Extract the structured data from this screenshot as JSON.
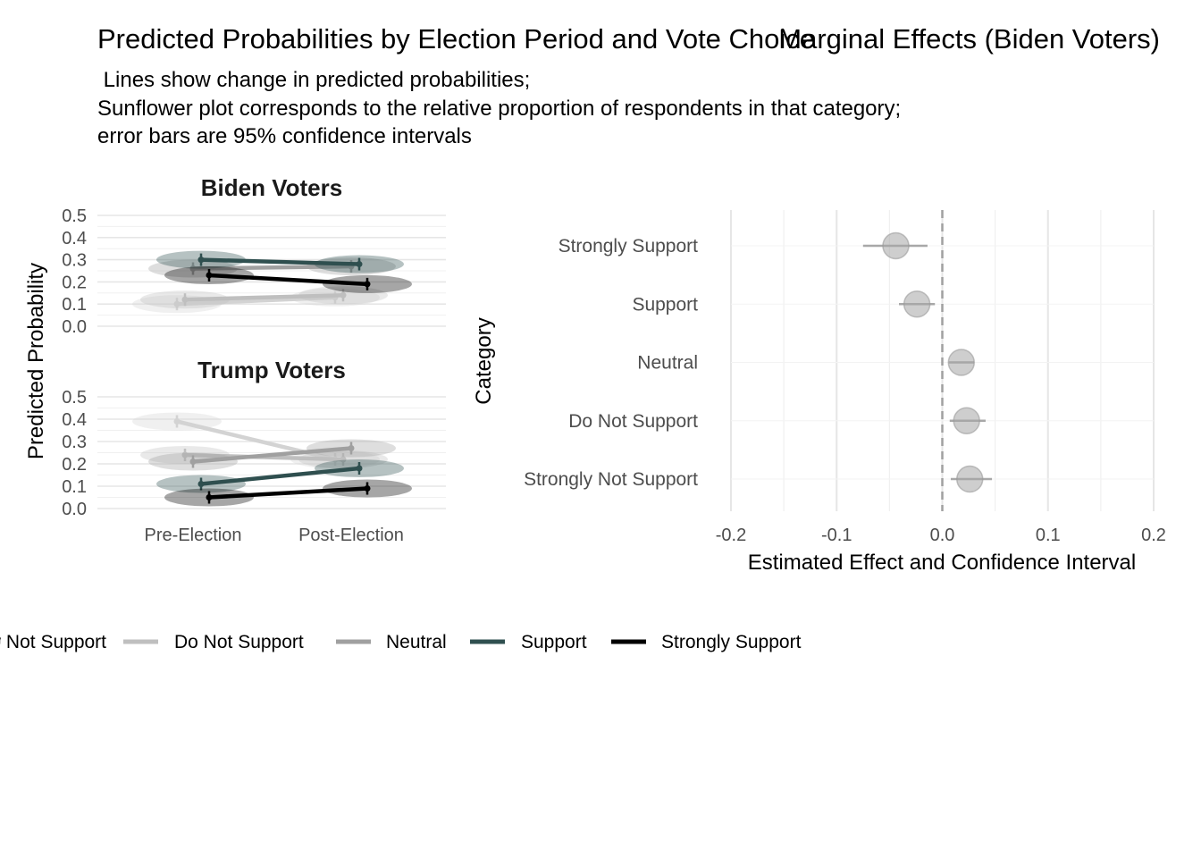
{
  "titles": {
    "left": "Predicted Probabilities by Election Period and Vote Choice",
    "right": "Marginal Effects (Biden Voters)"
  },
  "subtitle": [
    " Lines show change in predicted probabilities;",
    "Sunflower plot corresponds to the relative proportion of respondents in that category;",
    "error bars are 95% confidence intervals"
  ],
  "legend": [
    {
      "label": "Strongly Not Support",
      "color": "#d3d3d3"
    },
    {
      "label": "Do Not Support",
      "color": "#bfbfbf"
    },
    {
      "label": "Neutral",
      "color": "#a0a0a0"
    },
    {
      "label": "Support",
      "color": "#2f4f4f"
    },
    {
      "label": "Strongly Support",
      "color": "#000000"
    }
  ],
  "chart_data": [
    {
      "type": "line",
      "title": "Biden Voters",
      "ylabel": "Predicted Probability",
      "categories": [
        "Pre-Election",
        "Post-Election"
      ],
      "ylim": [
        0,
        0.5
      ],
      "yticks": [
        "0.0",
        "0.1",
        "0.2",
        "0.3",
        "0.4",
        "0.5"
      ],
      "grid": true,
      "series": [
        {
          "name": "Strongly Not Support",
          "color": "#d3d3d3",
          "values": [
            0.1,
            0.13
          ]
        },
        {
          "name": "Do Not Support",
          "color": "#bfbfbf",
          "values": [
            0.12,
            0.14
          ]
        },
        {
          "name": "Neutral",
          "color": "#a0a0a0",
          "values": [
            0.26,
            0.27
          ]
        },
        {
          "name": "Support",
          "color": "#2f4f4f",
          "values": [
            0.3,
            0.28
          ]
        },
        {
          "name": "Strongly Support",
          "color": "#000000",
          "values": [
            0.23,
            0.19
          ]
        }
      ]
    },
    {
      "type": "line",
      "title": "Trump Voters",
      "ylabel": "Predicted Probability",
      "categories": [
        "Pre-Election",
        "Post-Election"
      ],
      "ylim": [
        0,
        0.5
      ],
      "yticks": [
        "0.0",
        "0.1",
        "0.2",
        "0.3",
        "0.4",
        "0.5"
      ],
      "grid": true,
      "series": [
        {
          "name": "Strongly Not Support",
          "color": "#d3d3d3",
          "values": [
            0.39,
            0.22
          ]
        },
        {
          "name": "Do Not Support",
          "color": "#bfbfbf",
          "values": [
            0.24,
            0.22
          ]
        },
        {
          "name": "Neutral",
          "color": "#a0a0a0",
          "values": [
            0.21,
            0.27
          ]
        },
        {
          "name": "Support",
          "color": "#2f4f4f",
          "values": [
            0.11,
            0.18
          ]
        },
        {
          "name": "Strongly Support",
          "color": "#000000",
          "values": [
            0.05,
            0.09
          ]
        }
      ]
    },
    {
      "type": "scatter",
      "title": "Marginal Effects (Biden Voters)",
      "xlabel": "Estimated Effect and Confidence Interval",
      "ylabel": "Category",
      "xlim": [
        -0.2,
        0.2
      ],
      "xticks": [
        "-0.2",
        "-0.1",
        "0.0",
        "0.1",
        "0.2"
      ],
      "reference_line": 0,
      "grid": true,
      "categories": [
        "Strongly Support",
        "Support",
        "Neutral",
        "Do Not Support",
        "Strongly Not Support"
      ],
      "estimates": [
        -0.044,
        -0.024,
        0.018,
        0.023,
        0.026
      ],
      "ci_low": [
        -0.075,
        -0.041,
        0.006,
        0.007,
        0.008
      ],
      "ci_high": [
        -0.014,
        -0.007,
        0.03,
        0.041,
        0.047
      ]
    }
  ]
}
